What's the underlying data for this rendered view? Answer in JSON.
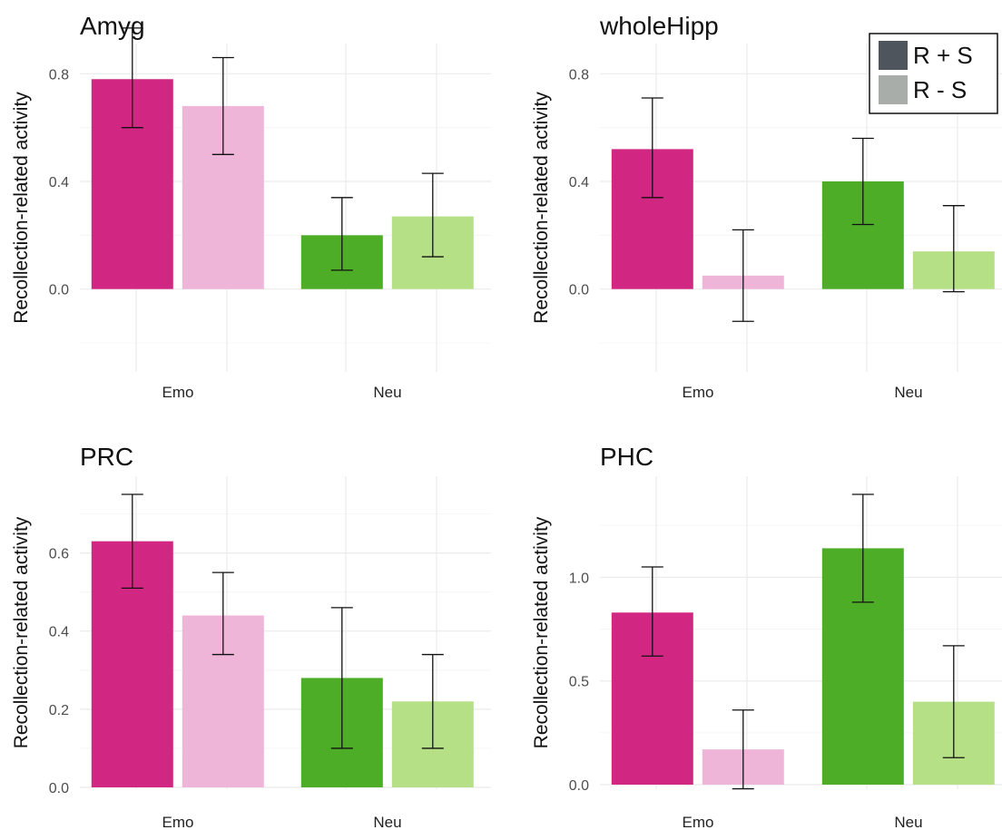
{
  "legend": {
    "entries": [
      {
        "label": "R + S",
        "color": "#4f555d"
      },
      {
        "label": "R - S",
        "color": "#a9adaa"
      }
    ]
  },
  "colors": {
    "Emo": {
      "R + S": "#d12783",
      "R - S": "#eeb5d8"
    },
    "Neu": {
      "R + S": "#4ead27",
      "R - S": "#b6e086"
    }
  },
  "chart_data": [
    {
      "type": "bar",
      "title": "Amyg",
      "ylabel": "Recollection-related activity",
      "categories": [
        "Emo",
        "Neu"
      ],
      "ylim": [
        -0.2,
        1.0
      ],
      "yticks": [
        0.0,
        0.4,
        0.8
      ],
      "ytick_labels": [
        "0.0",
        "0.4",
        "0.8"
      ],
      "series": [
        {
          "name": "R + S",
          "values": [
            0.78,
            0.2
          ],
          "error_low": [
            0.6,
            0.07
          ],
          "error_high": [
            0.97,
            0.34
          ]
        },
        {
          "name": "R - S",
          "values": [
            0.68,
            0.27
          ],
          "error_low": [
            0.5,
            0.12
          ],
          "error_high": [
            0.86,
            0.43
          ]
        }
      ]
    },
    {
      "type": "bar",
      "title": "wholeHipp",
      "ylabel": "Recollection-related activity",
      "categories": [
        "Emo",
        "Neu"
      ],
      "ylim": [
        -0.2,
        1.0
      ],
      "yticks": [
        0.0,
        0.4,
        0.8
      ],
      "ytick_labels": [
        "0.0",
        "0.4",
        "0.8"
      ],
      "series": [
        {
          "name": "R + S",
          "values": [
            0.52,
            0.4
          ],
          "error_low": [
            0.34,
            0.24
          ],
          "error_high": [
            0.71,
            0.56
          ]
        },
        {
          "name": "R - S",
          "values": [
            0.05,
            0.14
          ],
          "error_low": [
            -0.12,
            -0.01
          ],
          "error_high": [
            0.22,
            0.31
          ]
        }
      ]
    },
    {
      "type": "bar",
      "title": "PRC",
      "ylabel": "Recollection-related activity",
      "categories": [
        "Emo",
        "Neu"
      ],
      "ylim": [
        0.0,
        0.75
      ],
      "yticks": [
        0.0,
        0.2,
        0.4,
        0.6
      ],
      "ytick_labels": [
        "0.0",
        "0.2",
        "0.4",
        "0.6"
      ],
      "series": [
        {
          "name": "R + S",
          "values": [
            0.63,
            0.28
          ],
          "error_low": [
            0.51,
            0.1
          ],
          "error_high": [
            0.75,
            0.46
          ]
        },
        {
          "name": "R - S",
          "values": [
            0.44,
            0.22
          ],
          "error_low": [
            0.34,
            0.1
          ],
          "error_high": [
            0.55,
            0.34
          ]
        }
      ]
    },
    {
      "type": "bar",
      "title": "PHC",
      "ylabel": "Recollection-related activity",
      "categories": [
        "Emo",
        "Neu"
      ],
      "ylim": [
        0.0,
        1.4
      ],
      "yticks": [
        0.0,
        0.5,
        1.0
      ],
      "ytick_labels": [
        "0.0",
        "0.5",
        "1.0"
      ],
      "series": [
        {
          "name": "R + S",
          "values": [
            0.83,
            1.14
          ],
          "error_low": [
            0.62,
            0.88
          ],
          "error_high": [
            1.05,
            1.4
          ]
        },
        {
          "name": "R - S",
          "values": [
            0.17,
            0.4
          ],
          "error_low": [
            -0.02,
            0.13
          ],
          "error_high": [
            0.36,
            0.67
          ]
        }
      ]
    }
  ]
}
